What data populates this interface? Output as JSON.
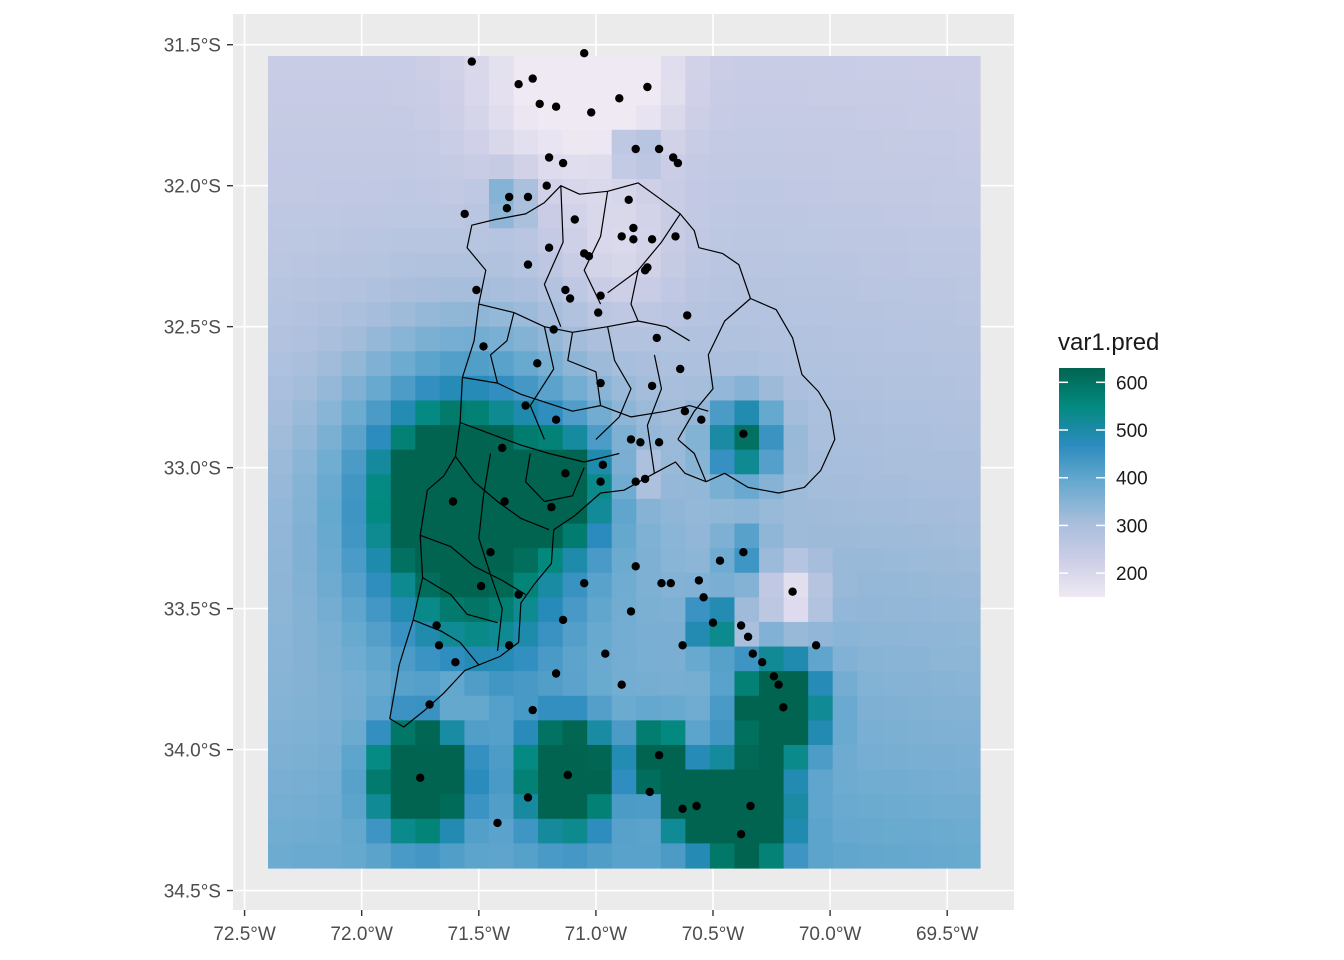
{
  "map": {
    "x_ticks": [
      "72.5°W",
      "72.0°W",
      "71.5°W",
      "71.0°W",
      "70.5°W",
      "70.0°W",
      "69.5°W"
    ],
    "y_ticks": [
      "31.5°S",
      "32.0°S",
      "32.5°S",
      "33.0°S",
      "33.5°S",
      "34.0°S",
      "34.5°S"
    ],
    "lon_range": [
      -72.4,
      -69.36
    ],
    "lat_range": [
      -34.42,
      -31.54
    ],
    "background_color": "#ebebeb",
    "grid_color": "#ffffff"
  },
  "legend": {
    "title": "var1.pred",
    "labels": [
      "600",
      "500",
      "400",
      "300",
      "200"
    ],
    "values": [
      600,
      500,
      400,
      300,
      200
    ],
    "range": [
      150,
      630
    ],
    "colors": [
      "#efe9f3",
      "#cbcde6",
      "#a5bddb",
      "#67a9cf",
      "#2b8bbe",
      "#038a80",
      "#016450"
    ]
  },
  "points": [
    [
      -71.53,
      -31.56
    ],
    [
      -71.05,
      -31.53
    ],
    [
      -71.27,
      -31.62
    ],
    [
      -71.33,
      -31.64
    ],
    [
      -70.78,
      -31.65
    ],
    [
      -70.9,
      -31.69
    ],
    [
      -71.24,
      -31.71
    ],
    [
      -71.17,
      -31.72
    ],
    [
      -71.02,
      -31.74
    ],
    [
      -70.83,
      -31.87
    ],
    [
      -70.73,
      -31.87
    ],
    [
      -70.67,
      -31.9
    ],
    [
      -70.65,
      -31.92
    ],
    [
      -71.2,
      -31.9
    ],
    [
      -71.14,
      -31.92
    ],
    [
      -71.37,
      -32.04
    ],
    [
      -71.29,
      -32.04
    ],
    [
      -71.21,
      -32.0
    ],
    [
      -71.38,
      -32.08
    ],
    [
      -71.56,
      -32.1
    ],
    [
      -70.86,
      -32.05
    ],
    [
      -71.09,
      -32.12
    ],
    [
      -70.84,
      -32.15
    ],
    [
      -70.89,
      -32.18
    ],
    [
      -70.84,
      -32.19
    ],
    [
      -70.76,
      -32.19
    ],
    [
      -70.66,
      -32.18
    ],
    [
      -71.2,
      -32.22
    ],
    [
      -71.05,
      -32.24
    ],
    [
      -71.03,
      -32.25
    ],
    [
      -71.29,
      -32.28
    ],
    [
      -70.79,
      -32.3
    ],
    [
      -70.78,
      -32.29
    ],
    [
      -71.13,
      -32.37
    ],
    [
      -71.11,
      -32.4
    ],
    [
      -70.98,
      -32.39
    ],
    [
      -71.51,
      -32.37
    ],
    [
      -70.99,
      -32.45
    ],
    [
      -71.18,
      -32.51
    ],
    [
      -70.61,
      -32.46
    ],
    [
      -70.74,
      -32.54
    ],
    [
      -71.48,
      -32.57
    ],
    [
      -71.25,
      -32.63
    ],
    [
      -70.64,
      -32.65
    ],
    [
      -70.98,
      -32.7
    ],
    [
      -70.76,
      -32.71
    ],
    [
      -71.3,
      -32.78
    ],
    [
      -71.17,
      -32.83
    ],
    [
      -70.62,
      -32.8
    ],
    [
      -70.55,
      -32.83
    ],
    [
      -70.37,
      -32.88
    ],
    [
      -70.85,
      -32.9
    ],
    [
      -70.81,
      -32.91
    ],
    [
      -70.73,
      -32.91
    ],
    [
      -71.4,
      -32.93
    ],
    [
      -70.97,
      -32.99
    ],
    [
      -71.13,
      -33.02
    ],
    [
      -70.79,
      -33.04
    ],
    [
      -70.83,
      -33.05
    ],
    [
      -70.98,
      -33.05
    ],
    [
      -71.61,
      -33.12
    ],
    [
      -71.39,
      -33.12
    ],
    [
      -71.19,
      -33.14
    ],
    [
      -70.47,
      -33.33
    ],
    [
      -70.37,
      -33.3
    ],
    [
      -71.45,
      -33.3
    ],
    [
      -70.83,
      -33.35
    ],
    [
      -70.72,
      -33.41
    ],
    [
      -70.68,
      -33.41
    ],
    [
      -70.56,
      -33.4
    ],
    [
      -71.05,
      -33.41
    ],
    [
      -71.49,
      -33.42
    ],
    [
      -70.54,
      -33.46
    ],
    [
      -71.33,
      -33.45
    ],
    [
      -70.16,
      -33.44
    ],
    [
      -70.85,
      -33.51
    ],
    [
      -71.14,
      -33.54
    ],
    [
      -71.68,
      -33.56
    ],
    [
      -70.5,
      -33.55
    ],
    [
      -70.38,
      -33.56
    ],
    [
      -70.35,
      -33.6
    ],
    [
      -71.37,
      -33.63
    ],
    [
      -71.67,
      -33.63
    ],
    [
      -70.63,
      -33.63
    ],
    [
      -70.06,
      -33.63
    ],
    [
      -70.96,
      -33.66
    ],
    [
      -70.33,
      -33.66
    ],
    [
      -70.29,
      -33.69
    ],
    [
      -71.6,
      -33.69
    ],
    [
      -71.17,
      -33.73
    ],
    [
      -70.24,
      -33.74
    ],
    [
      -70.22,
      -33.77
    ],
    [
      -70.89,
      -33.77
    ],
    [
      -71.71,
      -33.84
    ],
    [
      -70.2,
      -33.85
    ],
    [
      -71.27,
      -33.86
    ],
    [
      -70.73,
      -34.02
    ],
    [
      -71.12,
      -34.09
    ],
    [
      -71.75,
      -34.1
    ],
    [
      -70.77,
      -34.15
    ],
    [
      -71.29,
      -34.17
    ],
    [
      -70.57,
      -34.2
    ],
    [
      -70.34,
      -34.2
    ],
    [
      -70.63,
      -34.21
    ],
    [
      -71.42,
      -34.26
    ],
    [
      -70.38,
      -34.3
    ]
  ],
  "hotspots": [
    [
      -71.62,
      -33.11,
      650,
      0.2
    ],
    [
      -71.55,
      -33.1,
      320,
      0.5
    ],
    [
      -71.75,
      -34.1,
      620,
      0.17
    ],
    [
      -71.12,
      -34.09,
      560,
      0.17
    ],
    [
      -70.73,
      -34.03,
      560,
      0.1
    ],
    [
      -70.58,
      -34.2,
      550,
      0.1
    ],
    [
      -70.36,
      -34.22,
      680,
      0.16
    ],
    [
      -70.22,
      -33.85,
      560,
      0.16
    ],
    [
      -70.37,
      -32.9,
      300,
      0.14
    ],
    [
      -71.15,
      -33.08,
      300,
      0.18
    ],
    [
      -70.5,
      -33.56,
      250,
      0.09
    ],
    [
      -70.37,
      -33.3,
      130,
      0.09
    ],
    [
      -71.37,
      -32.05,
      150,
      0.09
    ],
    [
      -70.83,
      -31.87,
      150,
      0.08
    ],
    [
      -70.16,
      -33.46,
      -180,
      0.12
    ],
    [
      -70.38,
      -33.56,
      -150,
      0.05
    ],
    [
      -71.15,
      -31.65,
      -110,
      0.35
    ],
    [
      -70.85,
      -31.65,
      -80,
      0.22
    ],
    [
      -70.9,
      -32.25,
      -70,
      0.25
    ],
    [
      -70.8,
      -33.03,
      -80,
      0.08
    ],
    [
      -71.6,
      -33.82,
      -60,
      0.12
    ],
    [
      -70.9,
      -34.1,
      -30,
      0.2
    ],
    [
      -71.48,
      -33.5,
      80,
      0.3
    ]
  ],
  "boundary": [
    [
      [
        -71.43,
        -32.12
      ],
      [
        -71.3,
        -32.1
      ],
      [
        -71.22,
        -32.06
      ],
      [
        -71.15,
        -32.0
      ],
      [
        -71.07,
        -32.03
      ],
      [
        -70.95,
        -32.02
      ],
      [
        -70.82,
        -31.99
      ],
      [
        -70.72,
        -32.05
      ],
      [
        -70.64,
        -32.1
      ],
      [
        -70.58,
        -32.16
      ],
      [
        -70.56,
        -32.22
      ],
      [
        -70.46,
        -32.24
      ],
      [
        -70.39,
        -32.28
      ],
      [
        -70.34,
        -32.4
      ],
      [
        -70.23,
        -32.44
      ],
      [
        -70.16,
        -32.54
      ],
      [
        -70.12,
        -32.67
      ],
      [
        -70.05,
        -32.73
      ],
      [
        -70.0,
        -32.8
      ],
      [
        -69.98,
        -32.9
      ],
      [
        -70.04,
        -33.01
      ],
      [
        -70.11,
        -33.07
      ],
      [
        -70.22,
        -33.09
      ],
      [
        -70.35,
        -33.07
      ],
      [
        -70.45,
        -33.02
      ],
      [
        -70.53,
        -33.05
      ],
      [
        -70.62,
        -33.02
      ],
      [
        -70.66,
        -32.98
      ],
      [
        -70.75,
        -33.02
      ],
      [
        -70.88,
        -33.08
      ],
      [
        -70.98,
        -33.09
      ],
      [
        -71.09,
        -33.17
      ],
      [
        -71.18,
        -33.22
      ],
      [
        -71.19,
        -33.34
      ],
      [
        -71.26,
        -33.41
      ],
      [
        -71.32,
        -33.48
      ],
      [
        -71.33,
        -33.62
      ],
      [
        -71.41,
        -33.67
      ],
      [
        -71.56,
        -33.72
      ],
      [
        -71.65,
        -33.8
      ],
      [
        -71.73,
        -33.86
      ],
      [
        -71.82,
        -33.92
      ],
      [
        -71.88,
        -33.89
      ],
      [
        -71.84,
        -33.7
      ],
      [
        -71.78,
        -33.54
      ],
      [
        -71.74,
        -33.39
      ],
      [
        -71.75,
        -33.24
      ],
      [
        -71.72,
        -33.08
      ],
      [
        -71.65,
        -33.03
      ],
      [
        -71.6,
        -32.96
      ],
      [
        -71.58,
        -32.84
      ],
      [
        -71.57,
        -32.68
      ],
      [
        -71.52,
        -32.55
      ],
      [
        -71.5,
        -32.42
      ],
      [
        -71.47,
        -32.3
      ],
      [
        -71.55,
        -32.22
      ],
      [
        -71.53,
        -32.14
      ]
    ],
    [
      [
        -71.15,
        -32.0
      ],
      [
        -71.14,
        -32.2
      ],
      [
        -71.22,
        -32.35
      ],
      [
        -71.15,
        -32.5
      ]
    ],
    [
      [
        -70.95,
        -32.02
      ],
      [
        -70.98,
        -32.18
      ],
      [
        -71.05,
        -32.3
      ],
      [
        -70.98,
        -32.42
      ]
    ],
    [
      [
        -70.64,
        -32.1
      ],
      [
        -70.72,
        -32.2
      ],
      [
        -70.82,
        -32.3
      ],
      [
        -70.95,
        -32.38
      ]
    ],
    [
      [
        -71.5,
        -32.42
      ],
      [
        -71.35,
        -32.45
      ],
      [
        -71.22,
        -32.5
      ],
      [
        -71.1,
        -32.52
      ],
      [
        -70.95,
        -32.5
      ],
      [
        -70.82,
        -32.48
      ],
      [
        -70.7,
        -32.5
      ],
      [
        -70.6,
        -32.55
      ]
    ],
    [
      [
        -70.34,
        -32.4
      ],
      [
        -70.45,
        -32.48
      ],
      [
        -70.52,
        -32.6
      ],
      [
        -70.5,
        -32.72
      ],
      [
        -70.58,
        -32.8
      ],
      [
        -70.65,
        -32.9
      ]
    ],
    [
      [
        -71.22,
        -32.5
      ],
      [
        -71.18,
        -32.65
      ],
      [
        -71.28,
        -32.78
      ],
      [
        -71.22,
        -32.9
      ]
    ],
    [
      [
        -70.95,
        -32.5
      ],
      [
        -70.92,
        -32.62
      ],
      [
        -70.85,
        -32.72
      ],
      [
        -70.9,
        -32.82
      ],
      [
        -71.0,
        -32.9
      ]
    ],
    [
      [
        -71.57,
        -32.68
      ],
      [
        -71.42,
        -32.7
      ],
      [
        -71.32,
        -32.74
      ],
      [
        -71.1,
        -32.8
      ],
      [
        -70.98,
        -32.78
      ],
      [
        -70.85,
        -32.82
      ],
      [
        -70.7,
        -32.8
      ],
      [
        -70.6,
        -32.78
      ],
      [
        -70.52,
        -32.8
      ]
    ],
    [
      [
        -71.58,
        -32.84
      ],
      [
        -71.45,
        -32.88
      ],
      [
        -71.32,
        -32.92
      ],
      [
        -71.2,
        -32.95
      ],
      [
        -71.05,
        -32.98
      ],
      [
        -70.9,
        -32.95
      ]
    ],
    [
      [
        -71.6,
        -32.96
      ],
      [
        -71.52,
        -33.05
      ],
      [
        -71.42,
        -33.12
      ],
      [
        -71.32,
        -33.18
      ],
      [
        -71.2,
        -33.22
      ]
    ],
    [
      [
        -71.45,
        -32.95
      ],
      [
        -71.48,
        -33.1
      ],
      [
        -71.5,
        -33.25
      ],
      [
        -71.45,
        -33.38
      ],
      [
        -71.4,
        -33.5
      ],
      [
        -71.42,
        -33.65
      ]
    ],
    [
      [
        -71.75,
        -33.24
      ],
      [
        -71.62,
        -33.28
      ],
      [
        -71.52,
        -33.35
      ],
      [
        -71.4,
        -33.4
      ],
      [
        -71.3,
        -33.45
      ]
    ],
    [
      [
        -71.74,
        -33.39
      ],
      [
        -71.62,
        -33.45
      ],
      [
        -71.55,
        -33.52
      ],
      [
        -71.42,
        -33.55
      ]
    ],
    [
      [
        -71.78,
        -33.54
      ],
      [
        -71.66,
        -33.58
      ],
      [
        -71.58,
        -33.62
      ],
      [
        -71.5,
        -33.7
      ]
    ],
    [
      [
        -71.28,
        -32.95
      ],
      [
        -71.3,
        -33.05
      ],
      [
        -71.22,
        -33.12
      ],
      [
        -71.1,
        -33.1
      ],
      [
        -71.05,
        -33.0
      ]
    ],
    [
      [
        -71.1,
        -32.52
      ],
      [
        -71.12,
        -32.62
      ],
      [
        -71.0,
        -32.66
      ],
      [
        -70.98,
        -32.78
      ]
    ],
    [
      [
        -70.82,
        -32.3
      ],
      [
        -70.85,
        -32.42
      ],
      [
        -70.82,
        -32.48
      ]
    ],
    [
      [
        -71.35,
        -32.45
      ],
      [
        -71.38,
        -32.55
      ],
      [
        -71.45,
        -32.6
      ],
      [
        -71.42,
        -32.7
      ]
    ],
    [
      [
        -70.65,
        -32.9
      ],
      [
        -70.58,
        -32.95
      ],
      [
        -70.53,
        -33.05
      ]
    ],
    [
      [
        -70.75,
        -32.6
      ],
      [
        -70.72,
        -32.72
      ],
      [
        -70.78,
        -32.85
      ],
      [
        -70.75,
        -33.02
      ]
    ]
  ]
}
